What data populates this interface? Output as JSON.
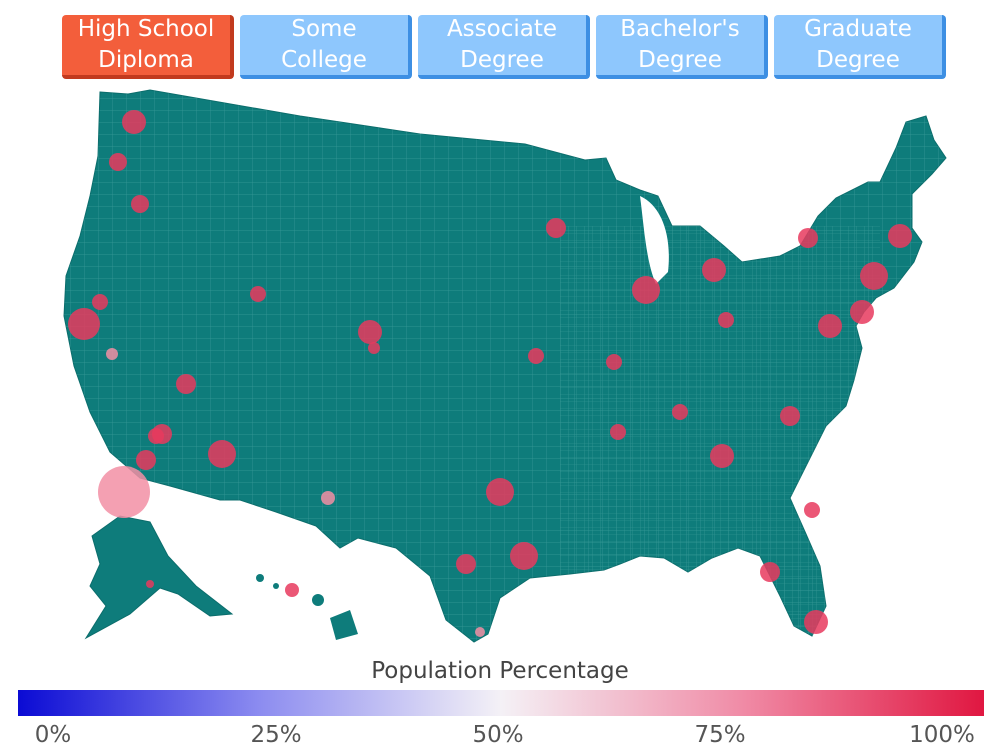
{
  "tabs": [
    {
      "label": "High School Diploma",
      "active": true
    },
    {
      "label": "Some College",
      "active": false
    },
    {
      "label": "Associate Degree",
      "active": false
    },
    {
      "label": "Bachelor's Degree",
      "active": false
    },
    {
      "label": "Graduate Degree",
      "active": false
    }
  ],
  "legend": {
    "title": "Population Percentage",
    "ticks": [
      "0%",
      "25%",
      "50%",
      "75%",
      "100%"
    ]
  },
  "colors": {
    "land": "#0e7c7b",
    "county_lines": "#3a9a98",
    "bubble": "#e83a5e",
    "bubble_light": "#f28fa5",
    "active_tab": "#f35e3b",
    "inactive_tab": "#8ec7fd",
    "scale_low": "#0b0bd4",
    "scale_mid": "#f4f1f6",
    "scale_high": "#e01741"
  }
}
